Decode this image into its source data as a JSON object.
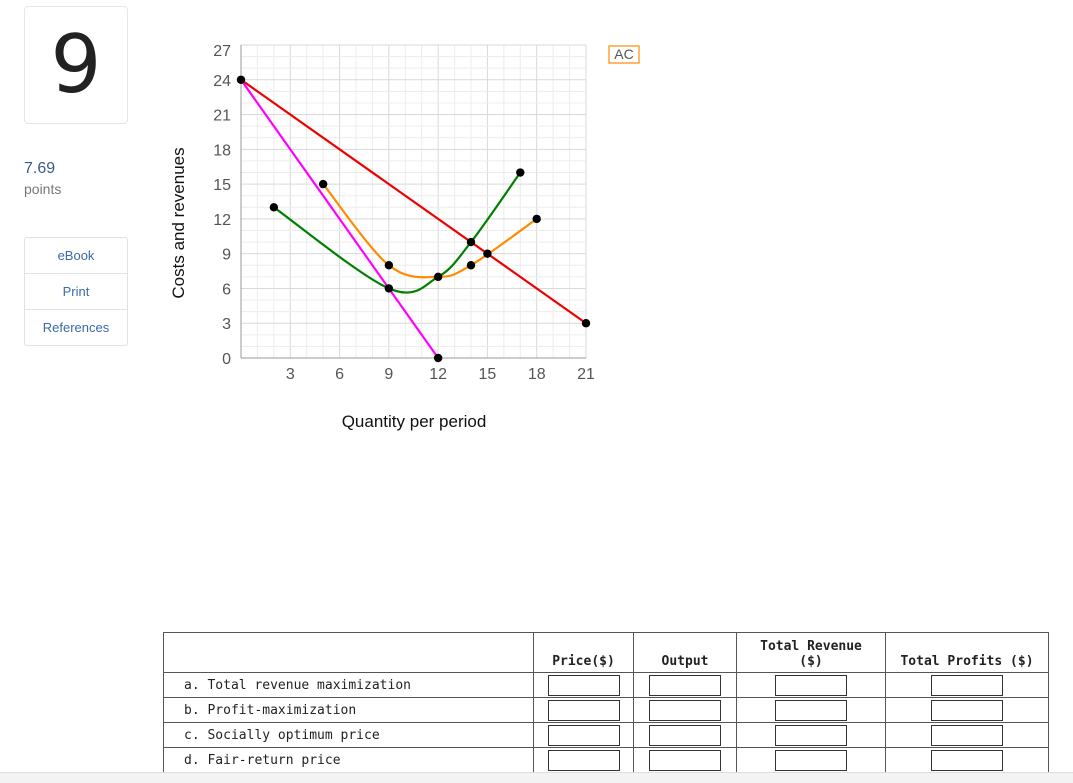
{
  "question": {
    "number": "9",
    "points_value": "7.69",
    "points_label": "points"
  },
  "side_links": [
    "eBook",
    "Print",
    "References"
  ],
  "chart_data": {
    "type": "line",
    "xlabel": "Quantity per period",
    "ylabel": "Costs and revenues",
    "xlim": [
      0,
      21
    ],
    "ylim": [
      0,
      27
    ],
    "x_ticks": [
      3,
      6,
      9,
      12,
      15,
      18,
      21
    ],
    "y_ticks": [
      0,
      3,
      6,
      9,
      12,
      15,
      18,
      21,
      24
    ],
    "y_top_partial_label": "27",
    "grid": true,
    "series": [
      {
        "name": "AC",
        "color": "#ff8c00",
        "smooth": true,
        "points": [
          [
            5,
            15
          ],
          [
            9,
            8
          ],
          [
            12,
            7
          ],
          [
            14,
            8
          ],
          [
            18,
            12
          ]
        ]
      },
      {
        "color": "#008000",
        "smooth": true,
        "points": [
          [
            2,
            13
          ],
          [
            9,
            6
          ],
          [
            12,
            7
          ],
          [
            14,
            10
          ],
          [
            17,
            16
          ]
        ]
      },
      {
        "color": "#ee0000",
        "smooth": false,
        "points": [
          [
            0,
            24
          ],
          [
            21,
            3
          ]
        ]
      },
      {
        "color": "#ff00ff",
        "smooth": false,
        "points": [
          [
            0,
            24
          ],
          [
            12,
            0
          ]
        ]
      }
    ],
    "markers": [
      [
        0,
        24
      ],
      [
        2,
        13
      ],
      [
        5,
        15
      ],
      [
        9,
        8
      ],
      [
        9,
        6
      ],
      [
        12,
        7
      ],
      [
        12,
        0
      ],
      [
        14,
        10
      ],
      [
        14,
        8
      ],
      [
        15,
        9
      ],
      [
        17,
        16
      ],
      [
        18,
        12
      ],
      [
        21,
        3
      ]
    ],
    "annotations": [
      {
        "text": "AC",
        "color": "#ff8c00"
      }
    ]
  },
  "table": {
    "headers": {
      "price": "Price($)",
      "output": "Output",
      "revenue_line1": "Total Revenue",
      "revenue_line2": "($)",
      "profits": "Total Profits ($)"
    },
    "rows": [
      "a. Total revenue maximization",
      "b. Profit-maximization",
      "c. Socially optimum price",
      "d. Fair-return price"
    ]
  }
}
